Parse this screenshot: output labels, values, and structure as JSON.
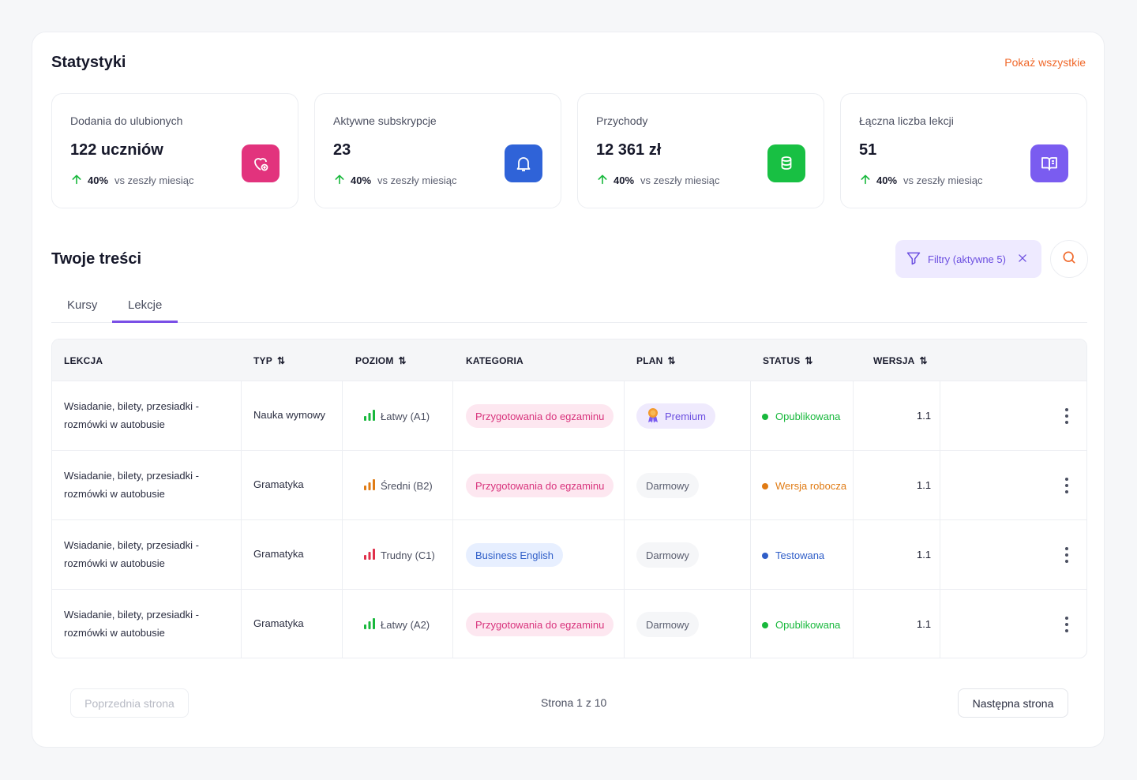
{
  "stats_section": {
    "title": "Statystyki",
    "show_all": "Pokaż wszystkie",
    "cards": [
      {
        "label": "Dodania do ulubionych",
        "value": "122 uczniów",
        "pct": "40%",
        "vs": "vs zeszły miesiąc",
        "icon": "heart-plus-icon",
        "color": "#e2337d"
      },
      {
        "label": "Aktywne subskrypcje",
        "value": "23",
        "pct": "40%",
        "vs": "vs zeszły miesiąc",
        "icon": "bell-icon",
        "color": "#2f63d8"
      },
      {
        "label": "Przychody",
        "value": "12 361 zł",
        "pct": "40%",
        "vs": "vs zeszły miesiąc",
        "icon": "coins-icon",
        "color": "#18c043"
      },
      {
        "label": "Łączna liczba lekcji",
        "value": "51",
        "pct": "40%",
        "vs": "vs zeszły miesiąc",
        "icon": "book-open-icon",
        "color": "#7a5cf0"
      }
    ]
  },
  "content_section": {
    "title": "Twoje treści",
    "filter_label": "Filtry (aktywne 5)",
    "tabs": [
      {
        "label": "Kursy",
        "active": false
      },
      {
        "label": "Lekcje",
        "active": true
      }
    ]
  },
  "table": {
    "columns": [
      "LEKCJA",
      "TYP",
      "POZIOM",
      "KATEGORIA",
      "PLAN",
      "STATUS",
      "WERSJA"
    ],
    "rows": [
      {
        "lesson": "Wsiadanie, bilety, przesiadki - rozmówki w autobusie",
        "type": "Nauka wymowy",
        "level": "Łatwy (A1)",
        "level_color": "#18b83c",
        "category": "Przygotowania do egzaminu",
        "plan": "Premium",
        "status": "Opublikowana",
        "status_color": "#18b83c",
        "version": "1.1"
      },
      {
        "lesson": "Wsiadanie, bilety, przesiadki - rozmówki w autobusie",
        "type": "Gramatyka",
        "level": "Średni (B2)",
        "level_color": "#e07b14",
        "category": "Przygotowania do egzaminu",
        "plan": "Darmowy",
        "status": "Wersja robocza",
        "status_color": "#e07b14",
        "version": "1.1"
      },
      {
        "lesson": "Wsiadanie, bilety, przesiadki - rozmówki w autobusie",
        "type": "Gramatyka",
        "level": "Trudny (C1)",
        "level_color": "#e0304a",
        "category": "Business English",
        "plan": "Darmowy",
        "status": "Testowana",
        "status_color": "#2f5ec8",
        "version": "1.1"
      },
      {
        "lesson": "Wsiadanie, bilety, przesiadki - rozmówki w autobusie",
        "type": "Gramatyka",
        "level": "Łatwy (A2)",
        "level_color": "#18b83c",
        "category": "Przygotowania do egzaminu",
        "plan": "Darmowy",
        "status": "Opublikowana",
        "status_color": "#18b83c",
        "version": "1.1"
      }
    ]
  },
  "pagination": {
    "prev": "Poprzednia strona",
    "info": "Strona 1 z 10",
    "next": "Następna strona"
  },
  "colors": {
    "accent": "#7a4fe6",
    "link": "#f0682a",
    "trend_up": "#18b83c"
  }
}
